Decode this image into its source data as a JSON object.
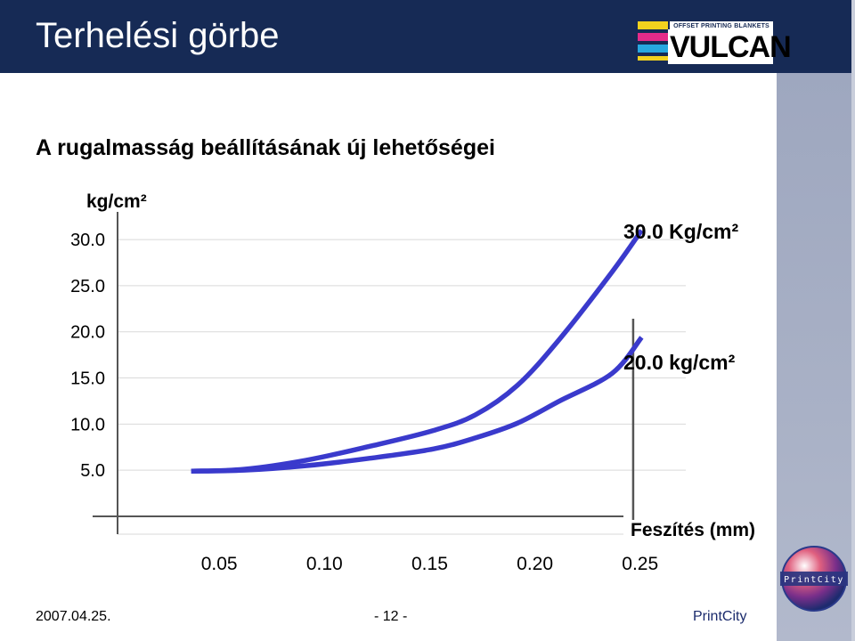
{
  "slide": {
    "title": "Terhelési görbe",
    "subtitle": "A rugalmasság beállításának új lehetőségei",
    "logo_word": "VULCAN",
    "logo_tagline": "OFFSET PRINTING BLANKETS",
    "badge_text": "PrintCity"
  },
  "footer": {
    "date": "2007.04.25.",
    "page": "- 12 -",
    "brand": "PrintCity"
  },
  "colors": {
    "title_bar": "#162a55",
    "curve": "#3a3acc",
    "axis": "#555555",
    "grid": "#d9d9d9",
    "side_stripe": "#a6aec4"
  },
  "chart_data": {
    "type": "line",
    "title": "",
    "ylabel": "kg/cm²",
    "xlabel": "Feszítés (mm)",
    "y_ticks": [
      "30.0",
      "25.0",
      "20.0",
      "15.0",
      "10.0",
      "5.0"
    ],
    "x_ticks": [
      "0.05",
      "0.10",
      "0.15",
      "0.20",
      "0.25"
    ],
    "xlim": [
      0,
      0.27
    ],
    "ylim": [
      0,
      33
    ],
    "grid": true,
    "series": [
      {
        "name": "30.0 Kg/cm²",
        "x": [
          0.035,
          0.06,
          0.09,
          0.12,
          0.15,
          0.17,
          0.19,
          0.21,
          0.235,
          0.249
        ],
        "y": [
          4.9,
          5.1,
          6.1,
          7.6,
          9.3,
          11.0,
          14.2,
          19.2,
          26.5,
          31.0
        ]
      },
      {
        "name": "20.0 kg/cm²",
        "x": [
          0.035,
          0.06,
          0.09,
          0.12,
          0.15,
          0.17,
          0.19,
          0.21,
          0.235,
          0.249
        ],
        "y": [
          4.9,
          5.0,
          5.5,
          6.3,
          7.3,
          8.5,
          10.1,
          12.5,
          15.5,
          19.4
        ]
      }
    ],
    "vertical_marker_x": 0.245,
    "annotations": [
      {
        "text": "30.0 Kg/cm²",
        "series": 0
      },
      {
        "text": "20.0 kg/cm²",
        "series": 1
      }
    ]
  }
}
